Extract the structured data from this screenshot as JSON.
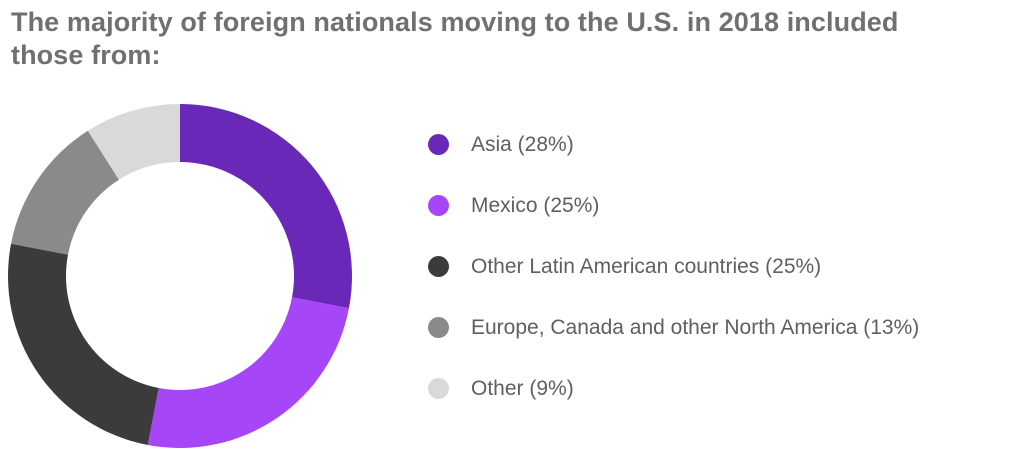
{
  "chart_data": {
    "type": "pie",
    "title": "The majority of foreign nationals moving to the U.S. in 2018 included those from:",
    "donut": true,
    "series": [
      {
        "name": "Asia",
        "value": 28,
        "label": "Asia (28%)",
        "color": "#6a28b8"
      },
      {
        "name": "Mexico",
        "value": 25,
        "label": "Mexico (25%)",
        "color": "#a646f7"
      },
      {
        "name": "Other Latin American countries",
        "value": 25,
        "label": "Other Latin American countries (25%)",
        "color": "#3b3b3b"
      },
      {
        "name": "Europe, Canada and other North America",
        "value": 13,
        "label": "Europe, Canada and other North America (13%)",
        "color": "#8a8a8a"
      },
      {
        "name": "Other",
        "value": 9,
        "label": "Other (9%)",
        "color": "#d9d9d9"
      }
    ],
    "legend_position": "right"
  }
}
